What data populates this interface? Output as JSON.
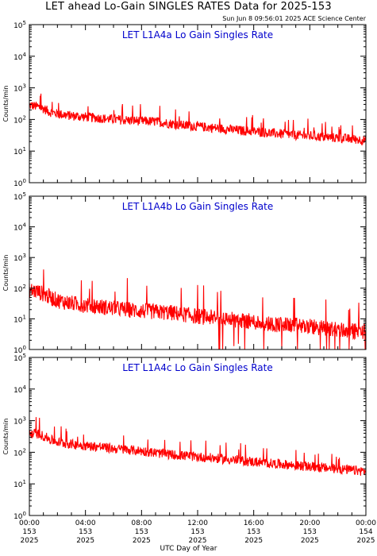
{
  "title": "LET ahead Lo-Gain SINGLES RATES Data for 2025-153",
  "timestamp": "Sun Jun  8 09:56:01 2025 ACE Science Center",
  "xlabel": "UTC Day of Year",
  "colors": {
    "trace": "#ff0000",
    "panel_title": "#0000cc",
    "axes": "#000000"
  },
  "chart_data": [
    {
      "type": "line",
      "title": "LET L1A4a Lo Gain Singles Rate",
      "ylabel": "Counts/min",
      "yscale": "log",
      "ylim": [
        1,
        100000
      ],
      "ytick_labels": [
        "10^0",
        "10^1",
        "10^2",
        "10^3",
        "10^4",
        "10^5"
      ],
      "xlim_hours": [
        0,
        24
      ],
      "series": [
        {
          "x_hours": [
            0,
            0.5,
            1,
            1.5,
            2,
            3,
            4,
            5,
            6,
            7,
            8,
            9,
            10,
            11,
            12,
            13,
            14,
            15,
            16,
            17,
            18,
            19,
            20,
            21,
            22,
            23,
            24
          ],
          "values": [
            280,
            260,
            220,
            170,
            150,
            130,
            120,
            110,
            100,
            95,
            90,
            85,
            75,
            65,
            60,
            55,
            50,
            45,
            42,
            38,
            35,
            32,
            30,
            28,
            26,
            24,
            22
          ]
        }
      ]
    },
    {
      "type": "line",
      "title": "LET L1A4b Lo Gain Singles Rate",
      "ylabel": "Counts/min",
      "yscale": "log",
      "ylim": [
        1,
        100000
      ],
      "ytick_labels": [
        "10^0",
        "10^1",
        "10^2",
        "10^3",
        "10^4",
        "10^5"
      ],
      "xlim_hours": [
        0,
        24
      ],
      "series": [
        {
          "x_hours": [
            0,
            0.5,
            1,
            1.5,
            2,
            3,
            4,
            5,
            6,
            7,
            8,
            9,
            10,
            11,
            12,
            13,
            14,
            15,
            16,
            17,
            18,
            19,
            20,
            21,
            22,
            23,
            24
          ],
          "values": [
            85,
            80,
            65,
            50,
            40,
            32,
            28,
            25,
            22,
            20,
            18,
            17,
            16,
            14,
            12,
            11,
            10,
            9,
            8,
            7,
            6.5,
            6,
            5.5,
            5,
            4.5,
            4,
            4
          ]
        }
      ]
    },
    {
      "type": "line",
      "title": "LET L1A4c Lo Gain Singles Rate",
      "ylabel": "Counts/min",
      "yscale": "log",
      "ylim": [
        1,
        100000
      ],
      "ytick_labels": [
        "10^0",
        "10^1",
        "10^2",
        "10^3",
        "10^4",
        "10^5"
      ],
      "xlim_hours": [
        0,
        24
      ],
      "series": [
        {
          "x_hours": [
            0,
            0.5,
            1,
            1.5,
            2,
            3,
            4,
            5,
            6,
            7,
            8,
            9,
            10,
            11,
            12,
            13,
            14,
            15,
            16,
            17,
            18,
            19,
            20,
            21,
            22,
            23,
            24
          ],
          "values": [
            380,
            390,
            330,
            250,
            210,
            180,
            160,
            150,
            130,
            120,
            110,
            95,
            85,
            78,
            72,
            66,
            60,
            55,
            50,
            45,
            42,
            38,
            35,
            32,
            30,
            27,
            25
          ]
        }
      ]
    }
  ],
  "x_ticks": [
    {
      "hour": 0,
      "time": "00:00",
      "doy": "153",
      "year": "2025"
    },
    {
      "hour": 4,
      "time": "04:00",
      "doy": "153",
      "year": "2025"
    },
    {
      "hour": 8,
      "time": "08:00",
      "doy": "153",
      "year": "2025"
    },
    {
      "hour": 12,
      "time": "12:00",
      "doy": "153",
      "year": "2025"
    },
    {
      "hour": 16,
      "time": "16:00",
      "doy": "153",
      "year": "2025"
    },
    {
      "hour": 20,
      "time": "20:00",
      "doy": "153",
      "year": "2025"
    },
    {
      "hour": 24,
      "time": "00:00",
      "doy": "154",
      "year": "2025"
    }
  ]
}
